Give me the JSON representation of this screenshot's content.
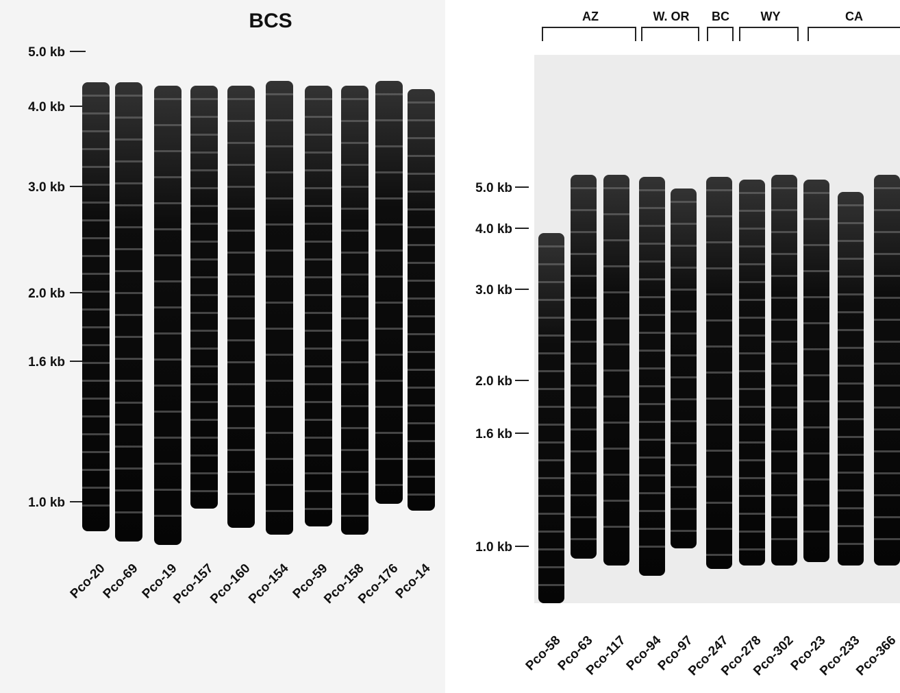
{
  "left_panel": {
    "title": "BCS",
    "size_markers": [
      "5.0 kb",
      "4.0 kb",
      "3.0 kb",
      "2.0 kb",
      "1.6 kb",
      "1.0 kb"
    ],
    "lanes": [
      "Pco-20",
      "Pco-69",
      "Pco-19",
      "Pco-157",
      "Pco-160",
      "Pco-154",
      "Pco-59",
      "Pco-158",
      "Pco-176",
      "Pco-14"
    ]
  },
  "right_panel": {
    "groups": [
      "AZ",
      "W. OR",
      "BC",
      "WY",
      "CA"
    ],
    "size_markers": [
      "5.0 kb",
      "4.0 kb",
      "3.0 kb",
      "2.0 kb",
      "1.6 kb",
      "1.0 kb"
    ],
    "lanes": [
      "Pco-58",
      "Pco-63",
      "Pco-117",
      "Pco-94",
      "Pco-97",
      "Pco-247",
      "Pco-278",
      "Pco-302",
      "Pco-23",
      "Pco-233",
      "Pco-366"
    ]
  }
}
